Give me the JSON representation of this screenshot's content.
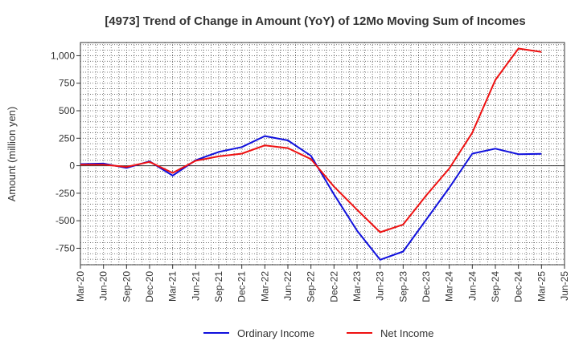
{
  "chart_data": {
    "type": "line",
    "title": "[4973]  Trend of Change in Amount (YoY) of 12Mo Moving Sum of Incomes",
    "xlabel": "",
    "ylabel": "Amount (million yen)",
    "categories": [
      "Mar-20",
      "Jun-20",
      "Sep-20",
      "Dec-20",
      "Mar-21",
      "Jun-21",
      "Sep-21",
      "Dec-21",
      "Mar-22",
      "Jun-22",
      "Sep-22",
      "Dec-22",
      "Mar-23",
      "Jun-23",
      "Sep-23",
      "Dec-23",
      "Mar-24",
      "Jun-24",
      "Sep-24",
      "Dec-24",
      "Mar-25",
      "Jun-25"
    ],
    "ylim": [
      -900,
      1120
    ],
    "yticks": [
      -750,
      -500,
      -250,
      0,
      250,
      500,
      750,
      1000
    ],
    "ytick_labels": [
      "-750",
      "-500",
      "-250",
      "0",
      "250",
      "500",
      "750",
      "1,000"
    ],
    "grid": true,
    "legend_position": "bottom",
    "series": [
      {
        "name": "Ordinary Income",
        "color": "#1010dd",
        "values": [
          15,
          20,
          -20,
          40,
          -90,
          50,
          125,
          170,
          270,
          230,
          90,
          -260,
          -590,
          -855,
          -780,
          -490,
          -200,
          110,
          155,
          105,
          108,
          null
        ]
      },
      {
        "name": "Net Income",
        "color": "#ee1111",
        "values": [
          10,
          10,
          -10,
          35,
          -65,
          45,
          85,
          110,
          185,
          160,
          60,
          -190,
          -400,
          -605,
          -535,
          -270,
          -25,
          300,
          780,
          1065,
          1035,
          null
        ]
      }
    ]
  }
}
